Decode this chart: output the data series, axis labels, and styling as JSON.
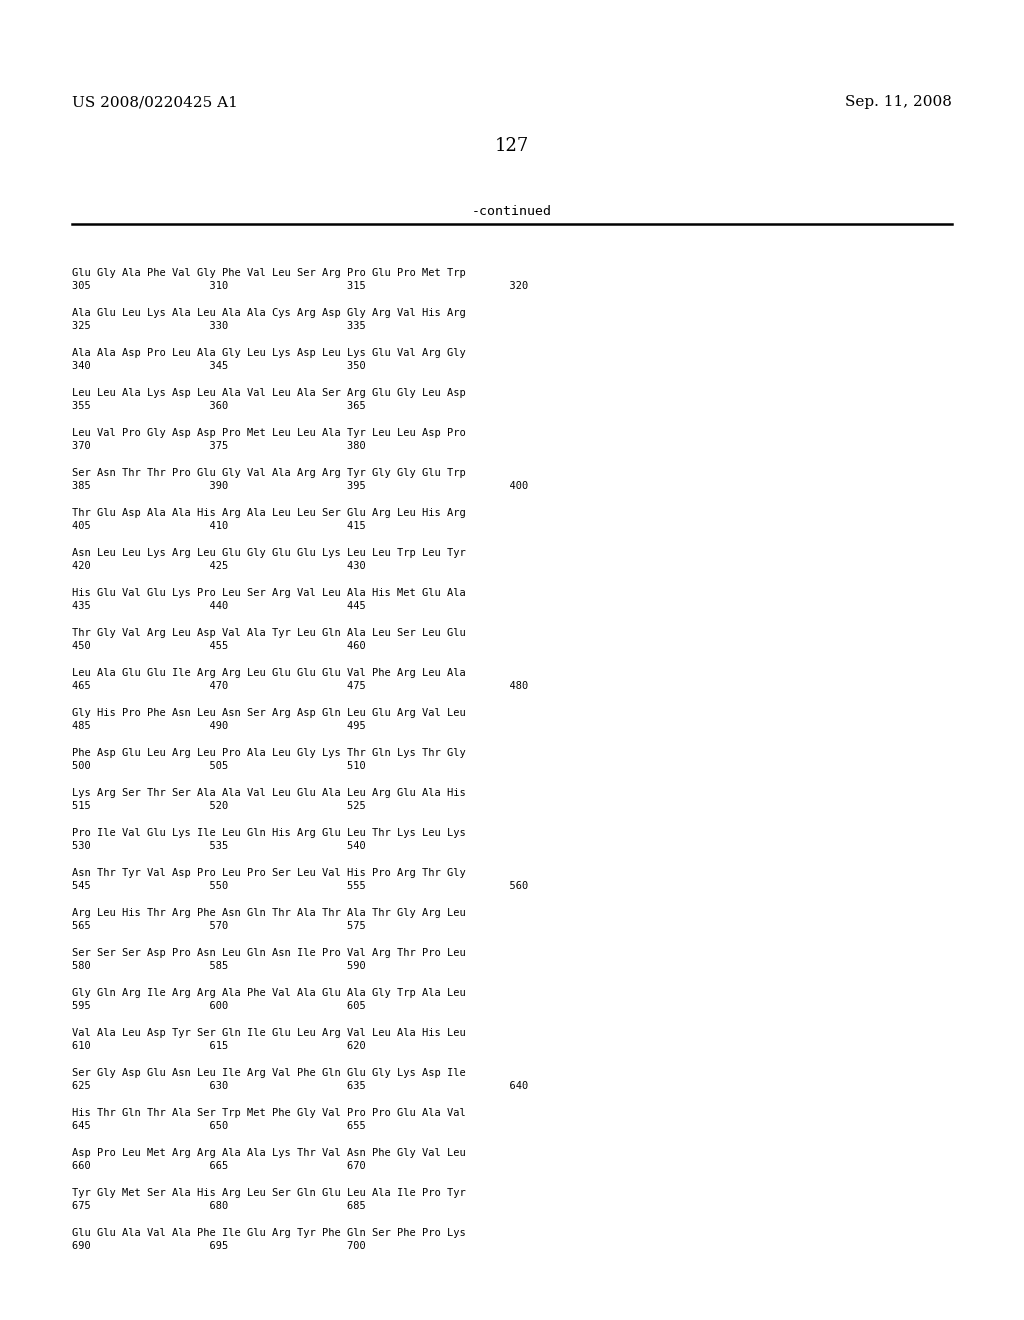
{
  "header_left": "US 2008/0220425 A1",
  "header_right": "Sep. 11, 2008",
  "page_number": "127",
  "continued_label": "-continued",
  "background_color": "#ffffff",
  "text_color": "#000000",
  "sequences": [
    [
      "Glu Gly Ala Phe Val Gly Phe Val Leu Ser Arg Pro Glu Pro Met Trp",
      "305                   310                   315                       320"
    ],
    [
      "Ala Glu Leu Lys Ala Leu Ala Ala Cys Arg Asp Gly Arg Val His Arg",
      "325                   330                   335"
    ],
    [
      "Ala Ala Asp Pro Leu Ala Gly Leu Lys Asp Leu Lys Glu Val Arg Gly",
      "340                   345                   350"
    ],
    [
      "Leu Leu Ala Lys Asp Leu Ala Val Leu Ala Ser Arg Glu Gly Leu Asp",
      "355                   360                   365"
    ],
    [
      "Leu Val Pro Gly Asp Asp Pro Met Leu Leu Ala Tyr Leu Leu Asp Pro",
      "370                   375                   380"
    ],
    [
      "Ser Asn Thr Thr Pro Glu Gly Val Ala Arg Arg Tyr Gly Gly Glu Trp",
      "385                   390                   395                       400"
    ],
    [
      "Thr Glu Asp Ala Ala His Arg Ala Leu Leu Ser Glu Arg Leu His Arg",
      "405                   410                   415"
    ],
    [
      "Asn Leu Leu Lys Arg Leu Glu Gly Glu Glu Lys Leu Leu Trp Leu Tyr",
      "420                   425                   430"
    ],
    [
      "His Glu Val Glu Lys Pro Leu Ser Arg Val Leu Ala His Met Glu Ala",
      "435                   440                   445"
    ],
    [
      "Thr Gly Val Arg Leu Asp Val Ala Tyr Leu Gln Ala Leu Ser Leu Glu",
      "450                   455                   460"
    ],
    [
      "Leu Ala Glu Glu Ile Arg Arg Leu Glu Glu Glu Val Phe Arg Leu Ala",
      "465                   470                   475                       480"
    ],
    [
      "Gly His Pro Phe Asn Leu Asn Ser Arg Asp Gln Leu Glu Arg Val Leu",
      "485                   490                   495"
    ],
    [
      "Phe Asp Glu Leu Arg Leu Pro Ala Leu Gly Lys Thr Gln Lys Thr Gly",
      "500                   505                   510"
    ],
    [
      "Lys Arg Ser Thr Ser Ala Ala Val Leu Glu Ala Leu Arg Glu Ala His",
      "515                   520                   525"
    ],
    [
      "Pro Ile Val Glu Lys Ile Leu Gln His Arg Glu Leu Thr Lys Leu Lys",
      "530                   535                   540"
    ],
    [
      "Asn Thr Tyr Val Asp Pro Leu Pro Ser Leu Val His Pro Arg Thr Gly",
      "545                   550                   555                       560"
    ],
    [
      "Arg Leu His Thr Arg Phe Asn Gln Thr Ala Thr Ala Thr Gly Arg Leu",
      "565                   570                   575"
    ],
    [
      "Ser Ser Ser Asp Pro Asn Leu Gln Asn Ile Pro Val Arg Thr Pro Leu",
      "580                   585                   590"
    ],
    [
      "Gly Gln Arg Ile Arg Arg Ala Phe Val Ala Glu Ala Gly Trp Ala Leu",
      "595                   600                   605"
    ],
    [
      "Val Ala Leu Asp Tyr Ser Gln Ile Glu Leu Arg Val Leu Ala His Leu",
      "610                   615                   620"
    ],
    [
      "Ser Gly Asp Glu Asn Leu Ile Arg Val Phe Gln Glu Gly Lys Asp Ile",
      "625                   630                   635                       640"
    ],
    [
      "His Thr Gln Thr Ala Ser Trp Met Phe Gly Val Pro Pro Glu Ala Val",
      "645                   650                   655"
    ],
    [
      "Asp Pro Leu Met Arg Arg Ala Ala Lys Thr Val Asn Phe Gly Val Leu",
      "660                   665                   670"
    ],
    [
      "Tyr Gly Met Ser Ala His Arg Leu Ser Gln Glu Leu Ala Ile Pro Tyr",
      "675                   680                   685"
    ],
    [
      "Glu Glu Ala Val Ala Phe Ile Glu Arg Tyr Phe Gln Ser Phe Pro Lys",
      "690                   695                   700"
    ]
  ]
}
